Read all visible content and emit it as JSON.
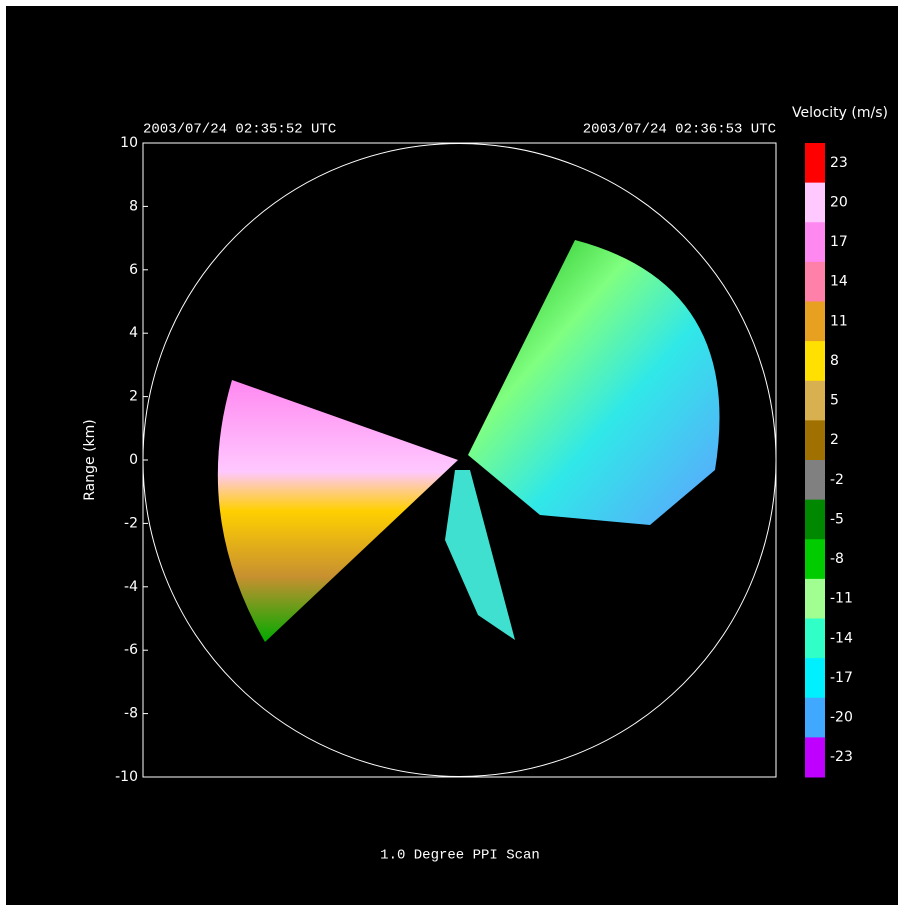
{
  "chart_data": {
    "type": "ppi",
    "title": "1.0 Degree PPI Scan",
    "ylabel": "Range (km)",
    "start_time": "2003/07/24 02:35:52 UTC",
    "end_time": "2003/07/24 02:36:53 UTC",
    "ylim": [
      -10,
      10
    ],
    "yticks": [
      -10,
      -8,
      -6,
      -4,
      -2,
      0,
      2,
      4,
      6,
      8,
      10
    ],
    "colorbar": {
      "label": "Velocity (m/s)",
      "ticks": [
        23,
        20,
        17,
        14,
        11,
        8,
        5,
        2,
        -2,
        -5,
        -8,
        -11,
        -14,
        -17,
        -20,
        -23
      ],
      "colors": [
        "#ff0000",
        "#ffc8ff",
        "#ff88f0",
        "#ff80a8",
        "#e8a020",
        "#ffe000",
        "#d8b050",
        "#a07000",
        "#808080",
        "#008800",
        "#00cc00",
        "#a0ff90",
        "#30ffc8",
        "#00f0ff",
        "#40a8ff",
        "#c000ff"
      ]
    }
  }
}
